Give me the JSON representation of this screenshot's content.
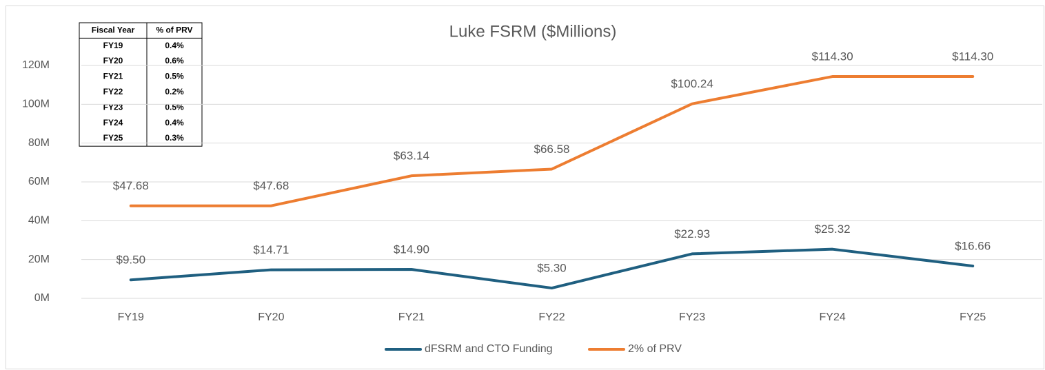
{
  "chart_data": {
    "type": "line",
    "title": "Luke FSRM ($Millions)",
    "categories": [
      "FY19",
      "FY20",
      "FY21",
      "FY22",
      "FY23",
      "FY24",
      "FY25"
    ],
    "series": [
      {
        "name": "dFSRM and CTO Funding",
        "color": "#1f5f80",
        "values": [
          9.5,
          14.71,
          14.9,
          5.3,
          22.93,
          25.32,
          16.66
        ],
        "value_labels": [
          "$9.50",
          "$14.71",
          "$14.90",
          "$5.30",
          "$22.93",
          "$25.32",
          "$16.66"
        ]
      },
      {
        "name": "2% of PRV",
        "color": "#ed7d31",
        "values": [
          47.68,
          47.68,
          63.14,
          66.58,
          100.24,
          114.3,
          114.3
        ],
        "value_labels": [
          "$47.68",
          "$47.68",
          "$63.14",
          "$66.58",
          "$100.24",
          "$114.30",
          "$114.30"
        ]
      }
    ],
    "ylim": [
      0,
      120
    ],
    "yticks": [
      {
        "value": 0,
        "label": "0M"
      },
      {
        "value": 20,
        "label": "20M"
      },
      {
        "value": 40,
        "label": "40M"
      },
      {
        "value": 60,
        "label": "60M"
      },
      {
        "value": 80,
        "label": "80M"
      },
      {
        "value": 100,
        "label": "100M"
      },
      {
        "value": 120,
        "label": "120M"
      }
    ],
    "grid": true,
    "legend": "bottom",
    "table": {
      "header": [
        "Fiscal Year",
        "% of PRV"
      ],
      "rows": [
        [
          "FY19",
          "0.4%"
        ],
        [
          "FY20",
          "0.6%"
        ],
        [
          "FY21",
          "0.5%"
        ],
        [
          "FY22",
          "0.2%"
        ],
        [
          "FY23",
          "0.5%"
        ],
        [
          "FY24",
          "0.4%"
        ],
        [
          "FY25",
          "0.3%"
        ]
      ]
    }
  }
}
